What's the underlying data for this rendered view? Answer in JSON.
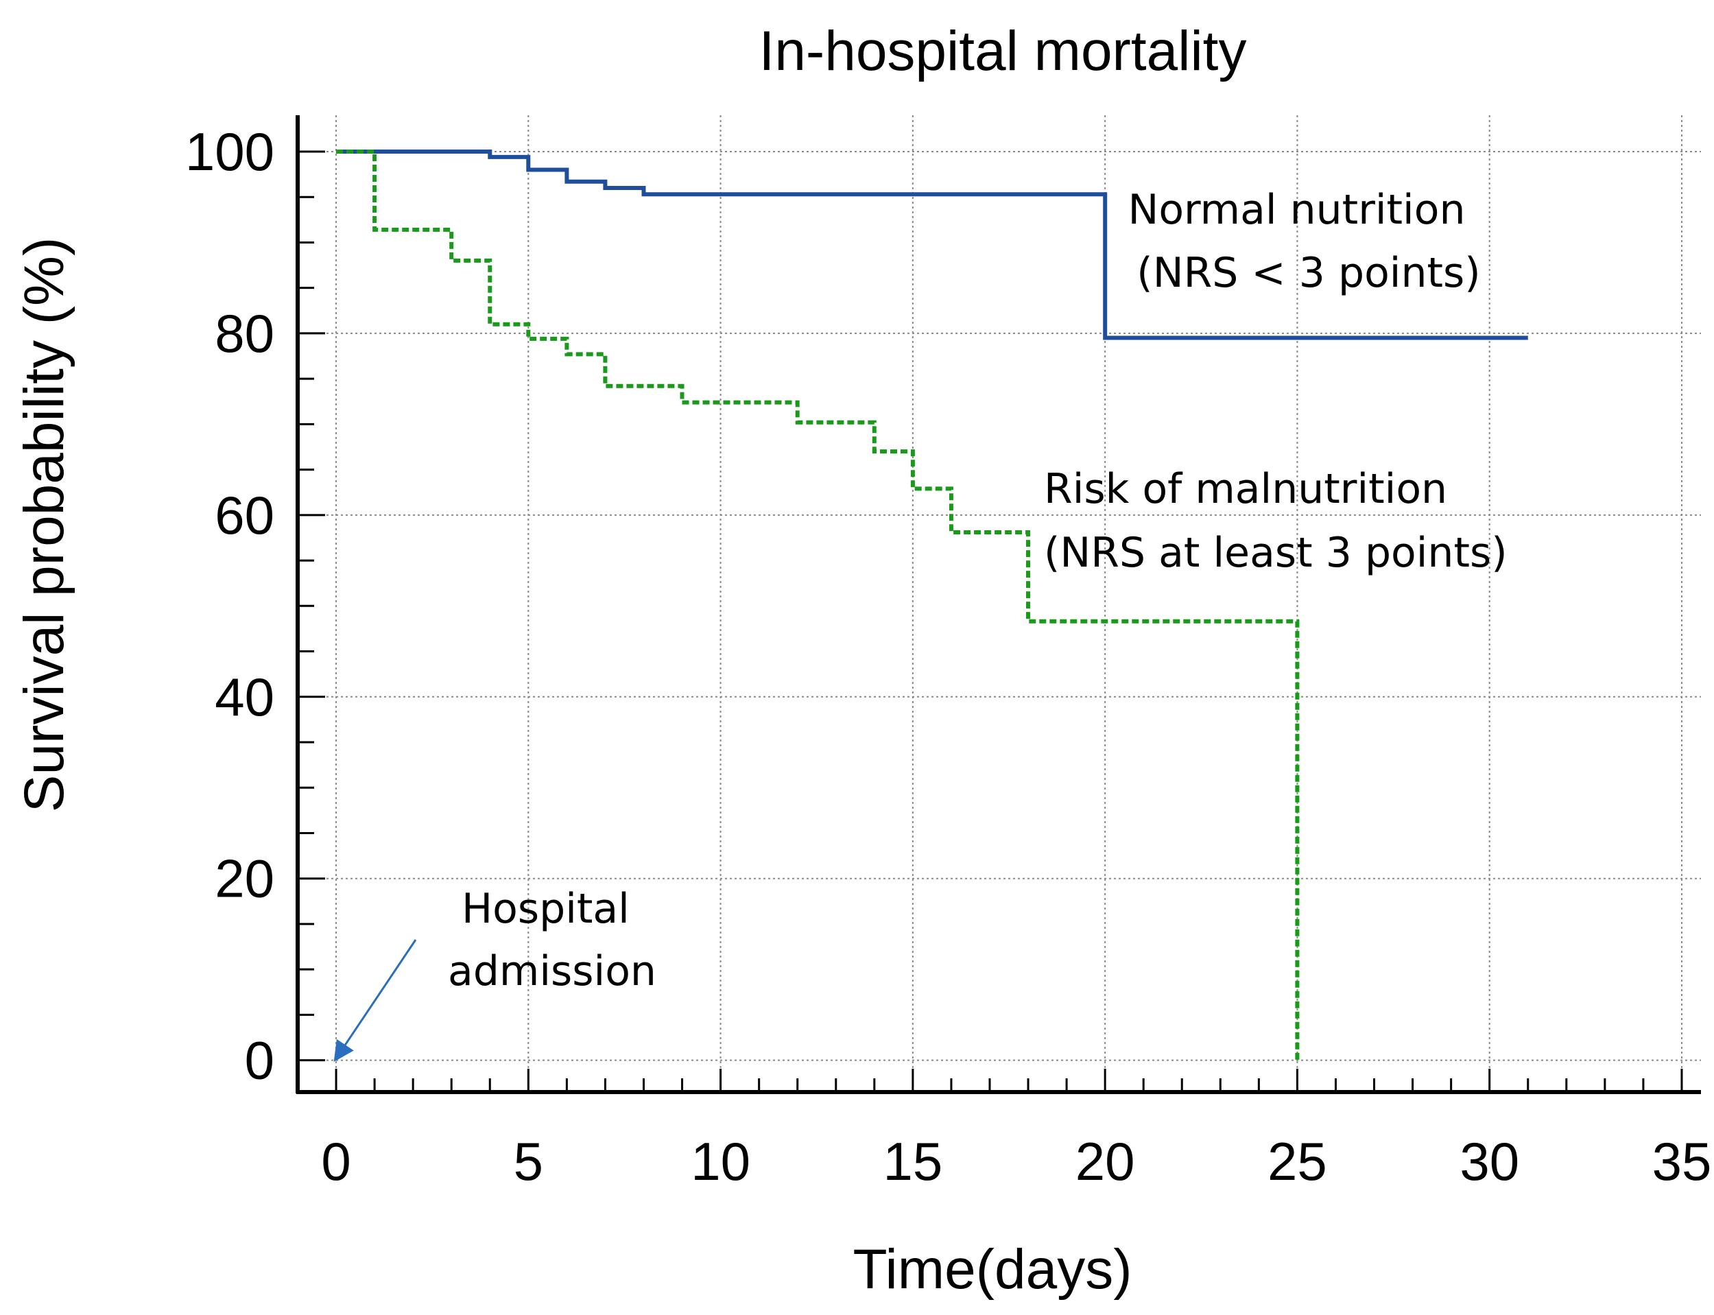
{
  "chart_data": {
    "type": "line",
    "title": "In-hospital mortality",
    "xlabel": "Time(days)",
    "ylabel": "Survival probability (%)",
    "xlim": [
      -1,
      35.5
    ],
    "ylim": [
      -3.5,
      104
    ],
    "x_ticks": [
      0,
      5,
      10,
      15,
      20,
      25,
      30,
      35
    ],
    "y_ticks": [
      0,
      20,
      40,
      60,
      80,
      100
    ],
    "grid": true,
    "series": [
      {
        "name": "Normal nutrition (NRS < 3 points)",
        "color": "#1f4e9c",
        "style": "solid",
        "points": [
          [
            0,
            100
          ],
          [
            4,
            100
          ],
          [
            4,
            99.4
          ],
          [
            5,
            99.4
          ],
          [
            5,
            98
          ],
          [
            6,
            98
          ],
          [
            6,
            96.7
          ],
          [
            7,
            96.7
          ],
          [
            7,
            96
          ],
          [
            8,
            96
          ],
          [
            8,
            95.3
          ],
          [
            20,
            95.3
          ],
          [
            20,
            79.5
          ],
          [
            31,
            79.5
          ]
        ]
      },
      {
        "name": "Risk of malnutrition (NRS at least 3 points)",
        "color": "#1a9a1a",
        "style": "dashed",
        "points": [
          [
            0,
            100
          ],
          [
            1,
            100
          ],
          [
            1,
            91.4
          ],
          [
            3,
            91.4
          ],
          [
            3,
            88
          ],
          [
            4,
            88
          ],
          [
            4,
            81
          ],
          [
            5,
            81
          ],
          [
            5,
            79.4
          ],
          [
            6,
            79.4
          ],
          [
            6,
            77.7
          ],
          [
            7,
            77.7
          ],
          [
            7,
            74.2
          ],
          [
            9,
            74.2
          ],
          [
            9,
            72.4
          ],
          [
            12,
            72.4
          ],
          [
            12,
            70.2
          ],
          [
            14,
            70.2
          ],
          [
            14,
            67
          ],
          [
            15,
            67
          ],
          [
            15,
            62.9
          ],
          [
            16,
            62.9
          ],
          [
            16,
            58.1
          ],
          [
            18,
            58.1
          ],
          [
            18,
            48.3
          ],
          [
            25,
            48.3
          ],
          [
            25,
            0
          ]
        ]
      }
    ],
    "annotations": [
      {
        "lines": [
          "Normal nutrition",
          "(NRS < 3 points)"
        ]
      },
      {
        "lines": [
          "Risk of malnutrition",
          "(NRS at least 3 points)"
        ]
      },
      {
        "lines": [
          "Hospital",
          "admission"
        ],
        "arrow_to": [
          0,
          0
        ]
      }
    ]
  }
}
